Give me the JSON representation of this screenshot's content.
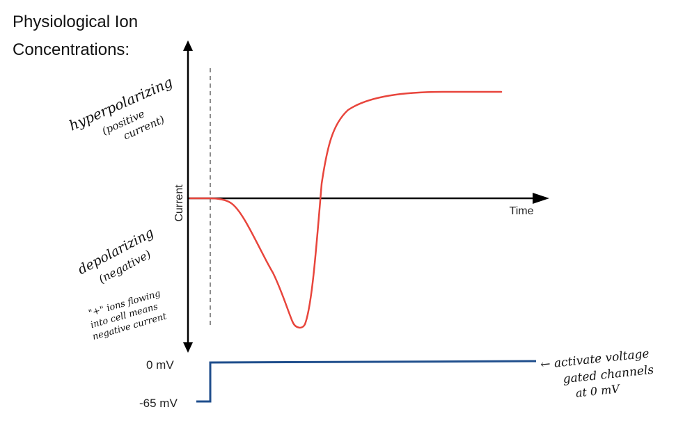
{
  "title_line1": "Physiological Ion",
  "title_line2": "Concentrations:",
  "axis_y_label": "Current",
  "axis_x_label": "Time",
  "annotations": {
    "hyperpolarizing_1": "hyperpolarizing",
    "hyperpolarizing_2": "(positive",
    "hyperpolarizing_3": "current)",
    "depolarizing_1": "depolarizing",
    "depolarizing_2": "(negative)",
    "note_1": "\"+\" ions flowing",
    "note_2": "into cell means",
    "note_3": "negative current",
    "voltage_note_1": "← activate voltage",
    "voltage_note_2": "gated channels",
    "voltage_note_3": "at 0 mV"
  },
  "voltage_labels": {
    "high": "0 mV",
    "low": "-65 mV"
  },
  "colors": {
    "current_trace": "#e8453c",
    "voltage_trace": "#1f4e8c",
    "axes": "#000000",
    "marker": "#666666"
  }
}
